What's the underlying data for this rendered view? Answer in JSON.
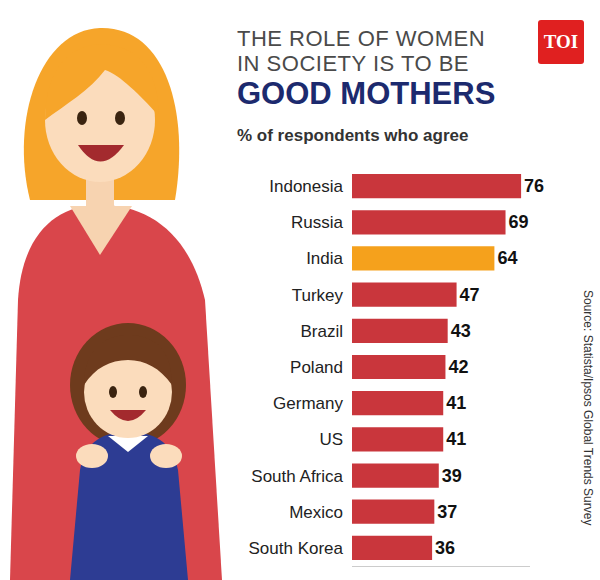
{
  "chart_data": {
    "type": "bar",
    "orientation": "horizontal",
    "title": "THE ROLE OF WOMEN IN SOCIETY IS TO BE GOOD MOTHERS",
    "subtitle": "% of respondents who agree",
    "source": "Source: Statista/Ipsos Global Trends Survey",
    "logo": "TOI",
    "categories": [
      "Indonesia",
      "Russia",
      "India",
      "Turkey",
      "Brazil",
      "Poland",
      "Germany",
      "US",
      "South Africa",
      "Mexico",
      "South Korea"
    ],
    "values": [
      76,
      69,
      64,
      47,
      43,
      42,
      41,
      41,
      39,
      37,
      36
    ],
    "colors": [
      "#c9363c",
      "#c9363c",
      "#f5a11c",
      "#c9363c",
      "#c9363c",
      "#c9363c",
      "#c9363c",
      "#c9363c",
      "#c9363c",
      "#c9363c",
      "#c9363c"
    ],
    "xlim": [
      0,
      80
    ],
    "xticks": [],
    "grid": false,
    "data_labels": true,
    "tick_labels": "y"
  }
}
